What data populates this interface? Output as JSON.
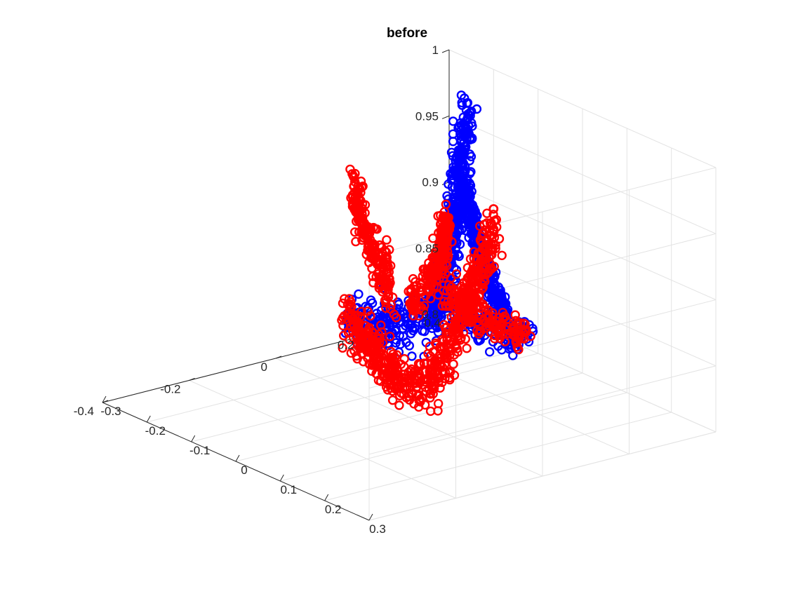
{
  "chart_data": {
    "type": "scatter",
    "title": "before",
    "xlabel": "",
    "ylabel": "",
    "zlabel": "",
    "view": "3d",
    "grid": true,
    "xlim": [
      -0.3,
      0.3
    ],
    "ylim": [
      -0.4,
      0.4
    ],
    "zlim": [
      0.8,
      1.0
    ],
    "x_ticks": [
      -0.3,
      -0.2,
      -0.1,
      0,
      0.1,
      0.2,
      0.3
    ],
    "x_tick_labels": [
      "-0.3",
      "-0.2",
      "-0.1",
      "0",
      "0.1",
      "0.2",
      "0.3"
    ],
    "y_ticks": [
      -0.4,
      -0.2,
      0,
      0.2,
      0.4
    ],
    "y_tick_labels": [
      "-0.4",
      "-0.2",
      "0",
      "0.2",
      "0.4"
    ],
    "z_ticks": [
      0.8,
      0.85,
      0.9,
      0.95,
      1.0
    ],
    "z_tick_labels": [
      "0.8",
      "0.85",
      "0.9",
      "0.95",
      "1"
    ],
    "marker": "circle",
    "series": [
      {
        "color": "#0000ff",
        "bands": [
          {
            "points": [
              [
                -0.12,
                0.26,
                0.99
              ],
              [
                -0.1,
                0.22,
                0.955
              ],
              [
                -0.06,
                0.16,
                0.905
              ],
              [
                -0.02,
                0.08,
                0.87
              ],
              [
                0.0,
                0.0,
                0.87
              ],
              [
                0.02,
                -0.08,
                0.88
              ],
              [
                0.04,
                -0.16,
                0.89
              ]
            ],
            "spread": [
              0.018,
              0.022,
              0.03
            ]
          },
          {
            "points": [
              [
                0.04,
                -0.16,
                0.89
              ],
              [
                0.06,
                -0.2,
                0.9
              ]
            ],
            "spread": [
              0.015,
              0.02,
              0.02
            ]
          },
          {
            "points": [
              [
                0.12,
                -0.05,
                0.905
              ],
              [
                0.17,
                -0.02,
                0.9
              ],
              [
                0.22,
                0.0,
                0.895
              ],
              [
                0.25,
                0.02,
                0.9
              ]
            ],
            "spread": [
              0.015,
              0.025,
              0.02
            ]
          },
          {
            "points": [
              [
                0.2,
                0.02,
                0.9
              ],
              [
                0.22,
                -0.03,
                0.93
              ],
              [
                0.23,
                -0.08,
                0.975
              ],
              [
                0.24,
                -0.12,
                1.02
              ]
            ],
            "spread": [
              0.01,
              0.015,
              0.012
            ]
          }
        ]
      },
      {
        "color": "#ff0000",
        "bands": [
          {
            "points": [
              [
                -0.1,
                0.3,
                0.905
              ],
              [
                -0.08,
                0.24,
                0.875
              ],
              [
                -0.05,
                0.16,
                0.845
              ],
              [
                -0.01,
                0.06,
                0.82
              ],
              [
                0.01,
                -0.04,
                0.835
              ],
              [
                0.03,
                -0.12,
                0.87
              ],
              [
                0.05,
                -0.2,
                0.9
              ]
            ],
            "spread": [
              0.02,
              0.02,
              0.028
            ]
          },
          {
            "points": [
              [
                0.0,
                -0.04,
                0.9
              ],
              [
                -0.02,
                -0.07,
                0.935
              ],
              [
                -0.03,
                -0.1,
                0.975
              ]
            ],
            "spread": [
              0.012,
              0.012,
              0.03
            ]
          },
          {
            "points": [
              [
                0.06,
                -0.06,
                0.9
              ],
              [
                0.09,
                -0.04,
                0.92
              ],
              [
                0.11,
                -0.03,
                0.95
              ],
              [
                0.13,
                -0.05,
                0.975
              ]
            ],
            "spread": [
              0.015,
              0.015,
              0.02
            ]
          },
          {
            "points": [
              [
                0.1,
                -0.02,
                0.915
              ],
              [
                0.16,
                0.0,
                0.9
              ],
              [
                0.21,
                0.02,
                0.895
              ],
              [
                0.24,
                0.02,
                0.9
              ]
            ],
            "spread": [
              0.015,
              0.025,
              0.02
            ]
          }
        ]
      }
    ]
  }
}
